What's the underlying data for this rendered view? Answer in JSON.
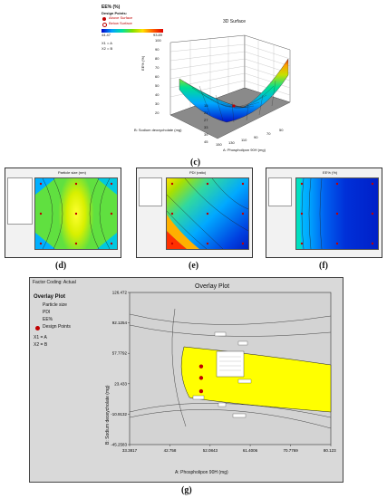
{
  "surface3d": {
    "legend_title": "EE% (%)",
    "design_points_label": "Design Points:",
    "above_label": "Above Surface",
    "below_label": "Below Surface",
    "scale_min": "44.47",
    "scale_max": "93.89",
    "x1": "X1 = A",
    "x2": "X2 = B",
    "title": "3D Surface",
    "zlabel": "EE% (%)",
    "xlabel": "A: Phospholipon 90H (mg)",
    "ylabel": "B: Sodium deoxycholate (mg)",
    "ztick_labels": [
      "100",
      "90",
      "80",
      "70",
      "60",
      "50",
      "40",
      "30",
      "20"
    ],
    "b_tick_labels": [
      "15",
      "21",
      "27",
      "33",
      "39",
      "45"
    ],
    "a_tick_labels": [
      "150",
      "130",
      "110",
      "90",
      "70",
      "50"
    ],
    "caption": "(c)"
  },
  "contours": [
    {
      "caption": "(d)",
      "title": "Particle size (nm)"
    },
    {
      "caption": "(e)",
      "title": "PDI (ratio)"
    },
    {
      "caption": "(f)",
      "title": "EE% (%)"
    }
  ],
  "overlay": {
    "factor_coding": "Factor Coding: Actual",
    "legend_title": "Overlay Plot",
    "legend_items": [
      "Particle size",
      "PDI",
      "EE%"
    ],
    "design_points": "Design Points",
    "x1": "X1 = A",
    "x2": "X2 = B",
    "title": "Overlay Plot",
    "xlabel": "A: Phospholipon 90H (mg)",
    "ylabel": "B: Sodium deoxycholate (mg)",
    "caption": "(g)",
    "colors": {
      "feasible": "#ffff00",
      "infeasible": "#d3d3d3",
      "point": "#c00000"
    }
  },
  "chart_data": {
    "type": "scatter",
    "title": "Overlay Plot",
    "xlabel": "A: Phospholipon 90H (mg)",
    "ylabel": "B: Sodium deoxycholate (mg)",
    "x_ticks": [
      33.3817,
      42.758,
      52.0843,
      61.4006,
      70.7769,
      80.1232
    ],
    "y_ticks": [
      126.472,
      92.1254,
      57.7792,
      23.433,
      -10.9132,
      -45.2583
    ],
    "xlim": [
      33.3817,
      80.1232
    ],
    "ylim": [
      -45.2583,
      126.472
    ],
    "series": [
      {
        "name": "Design Points",
        "x": [
          50.0,
          50.0,
          50.0
        ],
        "y": [
          43.0,
          30.0,
          15.0
        ]
      }
    ]
  }
}
